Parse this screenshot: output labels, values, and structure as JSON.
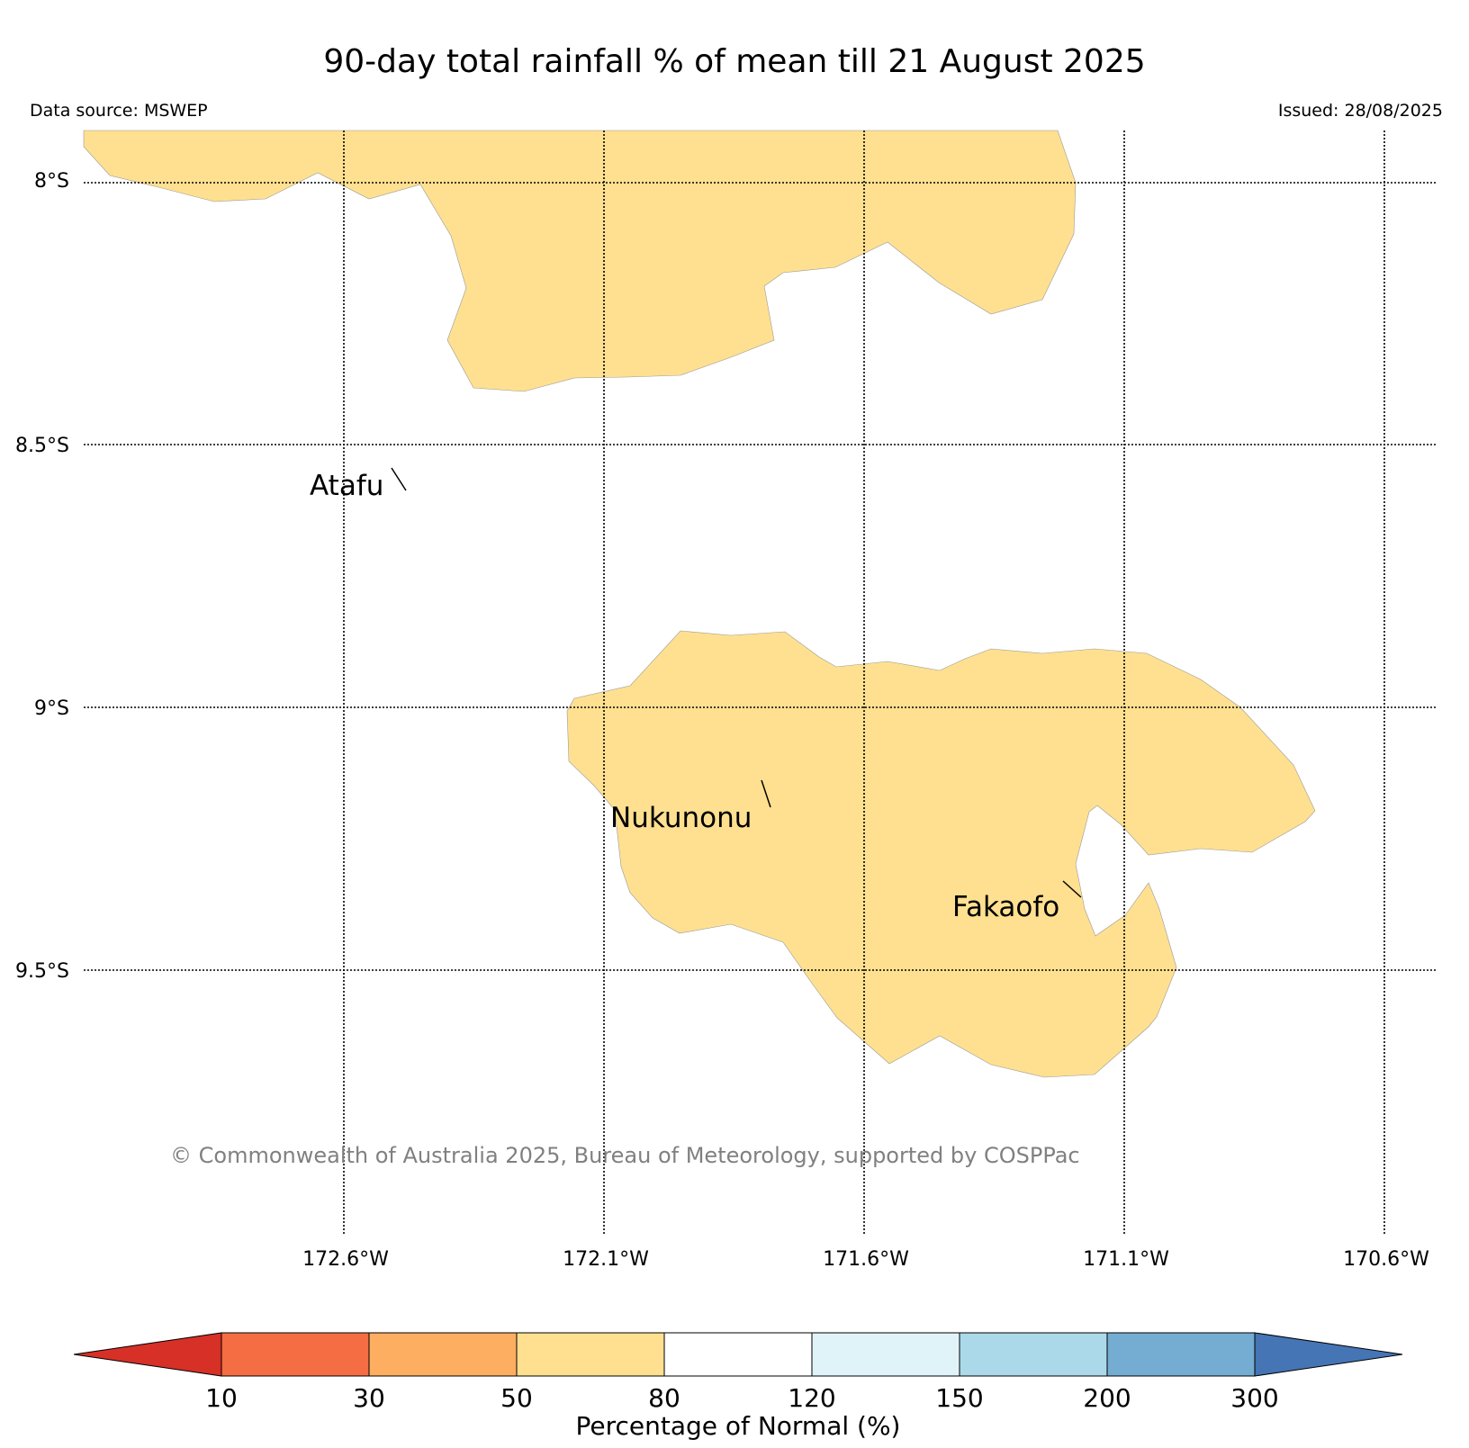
{
  "title": "90-day total rainfall % of mean till 21 August 2025",
  "data_source": "Data source: MSWEP",
  "issued": "Issued: 28/08/2025",
  "copyright": "© Commonwealth of Australia 2025, Bureau of Meteorology, supported by COSPPac",
  "map": {
    "lat_labels": [
      "8°S",
      "8.5°S",
      "9°S",
      "9.5°S"
    ],
    "lon_labels": [
      "172.6°W",
      "172.1°W",
      "171.6°W",
      "171.1°W",
      "170.6°W"
    ],
    "places": [
      {
        "name": "Atafu"
      },
      {
        "name": "Nukunonu"
      },
      {
        "name": "Fakaofo"
      }
    ],
    "region_category": "50-80",
    "region_color": "#fee090"
  },
  "legend": {
    "title": "Percentage of Normal (%)",
    "ticks": [
      "10",
      "30",
      "50",
      "80",
      "120",
      "150",
      "200",
      "300"
    ],
    "colors": [
      "#d73027",
      "#f46d43",
      "#fdae61",
      "#fee090",
      "#ffffff",
      "#e0f3f8",
      "#abd9e9",
      "#74add1",
      "#4575b4"
    ]
  }
}
